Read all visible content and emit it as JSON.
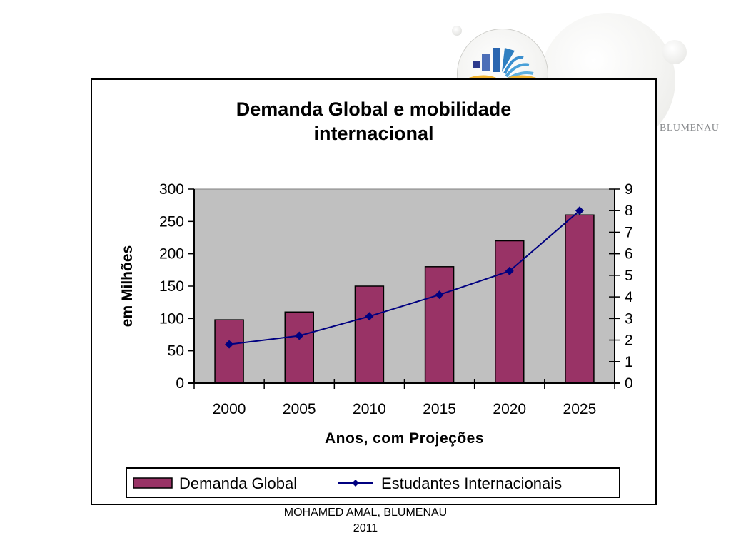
{
  "branding": {
    "logo_icon": "book-bars-logo-icon",
    "text": "BLUMENAU"
  },
  "footer": {
    "line1": "MOHAMED AMAL, BLUMENAU",
    "line2": "2011"
  },
  "chart_data": {
    "type": "bar",
    "title_lines": [
      "Demanda Global e mobilidade",
      "internacional"
    ],
    "title": "Demanda Global e mobilidade internacional",
    "xlabel": "Anos, com Projeções",
    "ylabel": "em Milhões",
    "y2label": "",
    "categories": [
      "2000",
      "2005",
      "2010",
      "2015",
      "2020",
      "2025"
    ],
    "ylim": [
      0,
      300
    ],
    "yticks": [
      0,
      50,
      100,
      150,
      200,
      250,
      300
    ],
    "y2lim": [
      0,
      9
    ],
    "y2ticks": [
      0,
      1,
      2,
      3,
      4,
      5,
      6,
      7,
      8,
      9
    ],
    "grid": false,
    "plot_background": "#c0c0c0",
    "legend_position": "bottom",
    "series": [
      {
        "name": "Demanda Global",
        "type": "bar",
        "axis": "left",
        "color": "#993366",
        "values": [
          98,
          110,
          150,
          180,
          220,
          260
        ]
      },
      {
        "name": "Estudantes Internacionais",
        "type": "line",
        "axis": "right",
        "marker": "diamond",
        "color": "#000080",
        "values": [
          1.8,
          2.2,
          3.1,
          4.1,
          5.2,
          8.0
        ]
      }
    ]
  }
}
